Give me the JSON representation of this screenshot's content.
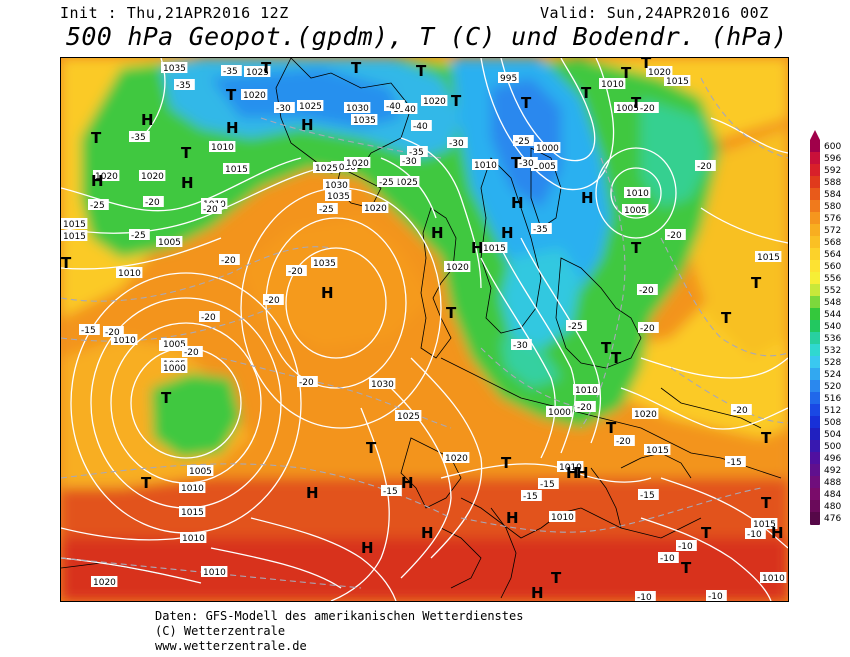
{
  "header": {
    "init": "Init : Thu,21APR2016 12Z",
    "valid": "Valid: Sun,24APR2016 00Z",
    "title": "500 hPa Geopot.(gpdm), T (C) und Bodendr. (hPa)"
  },
  "legend": {
    "levels": [
      "600",
      "596",
      "592",
      "588",
      "584",
      "580",
      "576",
      "572",
      "568",
      "564",
      "560",
      "556",
      "552",
      "548",
      "544",
      "540",
      "536",
      "532",
      "528",
      "524",
      "520",
      "516",
      "512",
      "508",
      "504",
      "500",
      "496",
      "492",
      "488",
      "484",
      "480",
      "476"
    ],
    "colors": [
      "#a0004a",
      "#c8103a",
      "#d8202a",
      "#e03a1c",
      "#e85a1a",
      "#f07a1c",
      "#f5961e",
      "#f8ae20",
      "#fac024",
      "#fcd22a",
      "#fde232",
      "#f6ee36",
      "#c8e83a",
      "#7cd83c",
      "#34c83c",
      "#22c860",
      "#28d0a0",
      "#30d8d0",
      "#3ac8f0",
      "#32a8f0",
      "#2a88ee",
      "#2068ea",
      "#1a48e4",
      "#1830d8",
      "#2020c0",
      "#3818b0",
      "#5010a0",
      "#60108e",
      "#700e7c",
      "#7a0c6a",
      "#6a0a5a",
      "#560848"
    ]
  },
  "map": {
    "pressure_labels": [
      "1035",
      "1025",
      "1020",
      "1025",
      "1030",
      "1035",
      "1020",
      "1040",
      "1030",
      "1025",
      "1020",
      "1025",
      "1030",
      "1035",
      "1020",
      "1010",
      "1020",
      "1015",
      "1010",
      "1020",
      "1005",
      "1015",
      "1010",
      "1015",
      "995",
      "1010",
      "1020",
      "1005",
      "1015",
      "1000",
      "1005",
      "1010",
      "1010",
      "1005",
      "1020",
      "1015",
      "1035",
      "1020",
      "1005",
      "1000",
      "1005",
      "1010",
      "1005",
      "1010",
      "1030",
      "1025",
      "1020",
      "1000",
      "1010",
      "1010",
      "1015",
      "1020",
      "1010",
      "1015",
      "1010",
      "1020",
      "1010",
      "1010",
      "1015",
      "1015"
    ],
    "temperature_labels": [
      "-35",
      "-35",
      "-35",
      "-30",
      "-40",
      "-40",
      "-35",
      "-30",
      "-30",
      "-30",
      "-25",
      "-25",
      "-25",
      "-20",
      "-20",
      "-25",
      "-25",
      "-20",
      "-20",
      "-20",
      "-20",
      "-20",
      "-15",
      "-20",
      "-20",
      "-35",
      "-30",
      "-25",
      "-20",
      "-20",
      "-20",
      "-20",
      "-20",
      "-15",
      "-15",
      "-15",
      "-20",
      "-20",
      "-15",
      "-10",
      "-10",
      "-10",
      "-10",
      "-10",
      "-20",
      "-15"
    ],
    "pressure_centers": [
      "H",
      "H",
      "H",
      "H",
      "H",
      "T",
      "T",
      "T",
      "T",
      "T",
      "T",
      "T",
      "H",
      "H",
      "H",
      "T",
      "T",
      "T",
      "H",
      "H",
      "T",
      "T",
      "T",
      "T",
      "T",
      "T",
      "H",
      "H",
      "T",
      "T",
      "T",
      "H",
      "H",
      "H",
      "T",
      "T",
      "T",
      "H",
      "H",
      "T",
      "T",
      "H",
      "T",
      "T",
      "T",
      "H",
      "T",
      "H",
      "T",
      "T"
    ]
  },
  "footer": {
    "line1": "Daten: GFS-Modell des amerikanischen Wetterdienstes",
    "line2": "(C) Wetterzentrale",
    "line3": "www.wetterzentrale.de"
  }
}
